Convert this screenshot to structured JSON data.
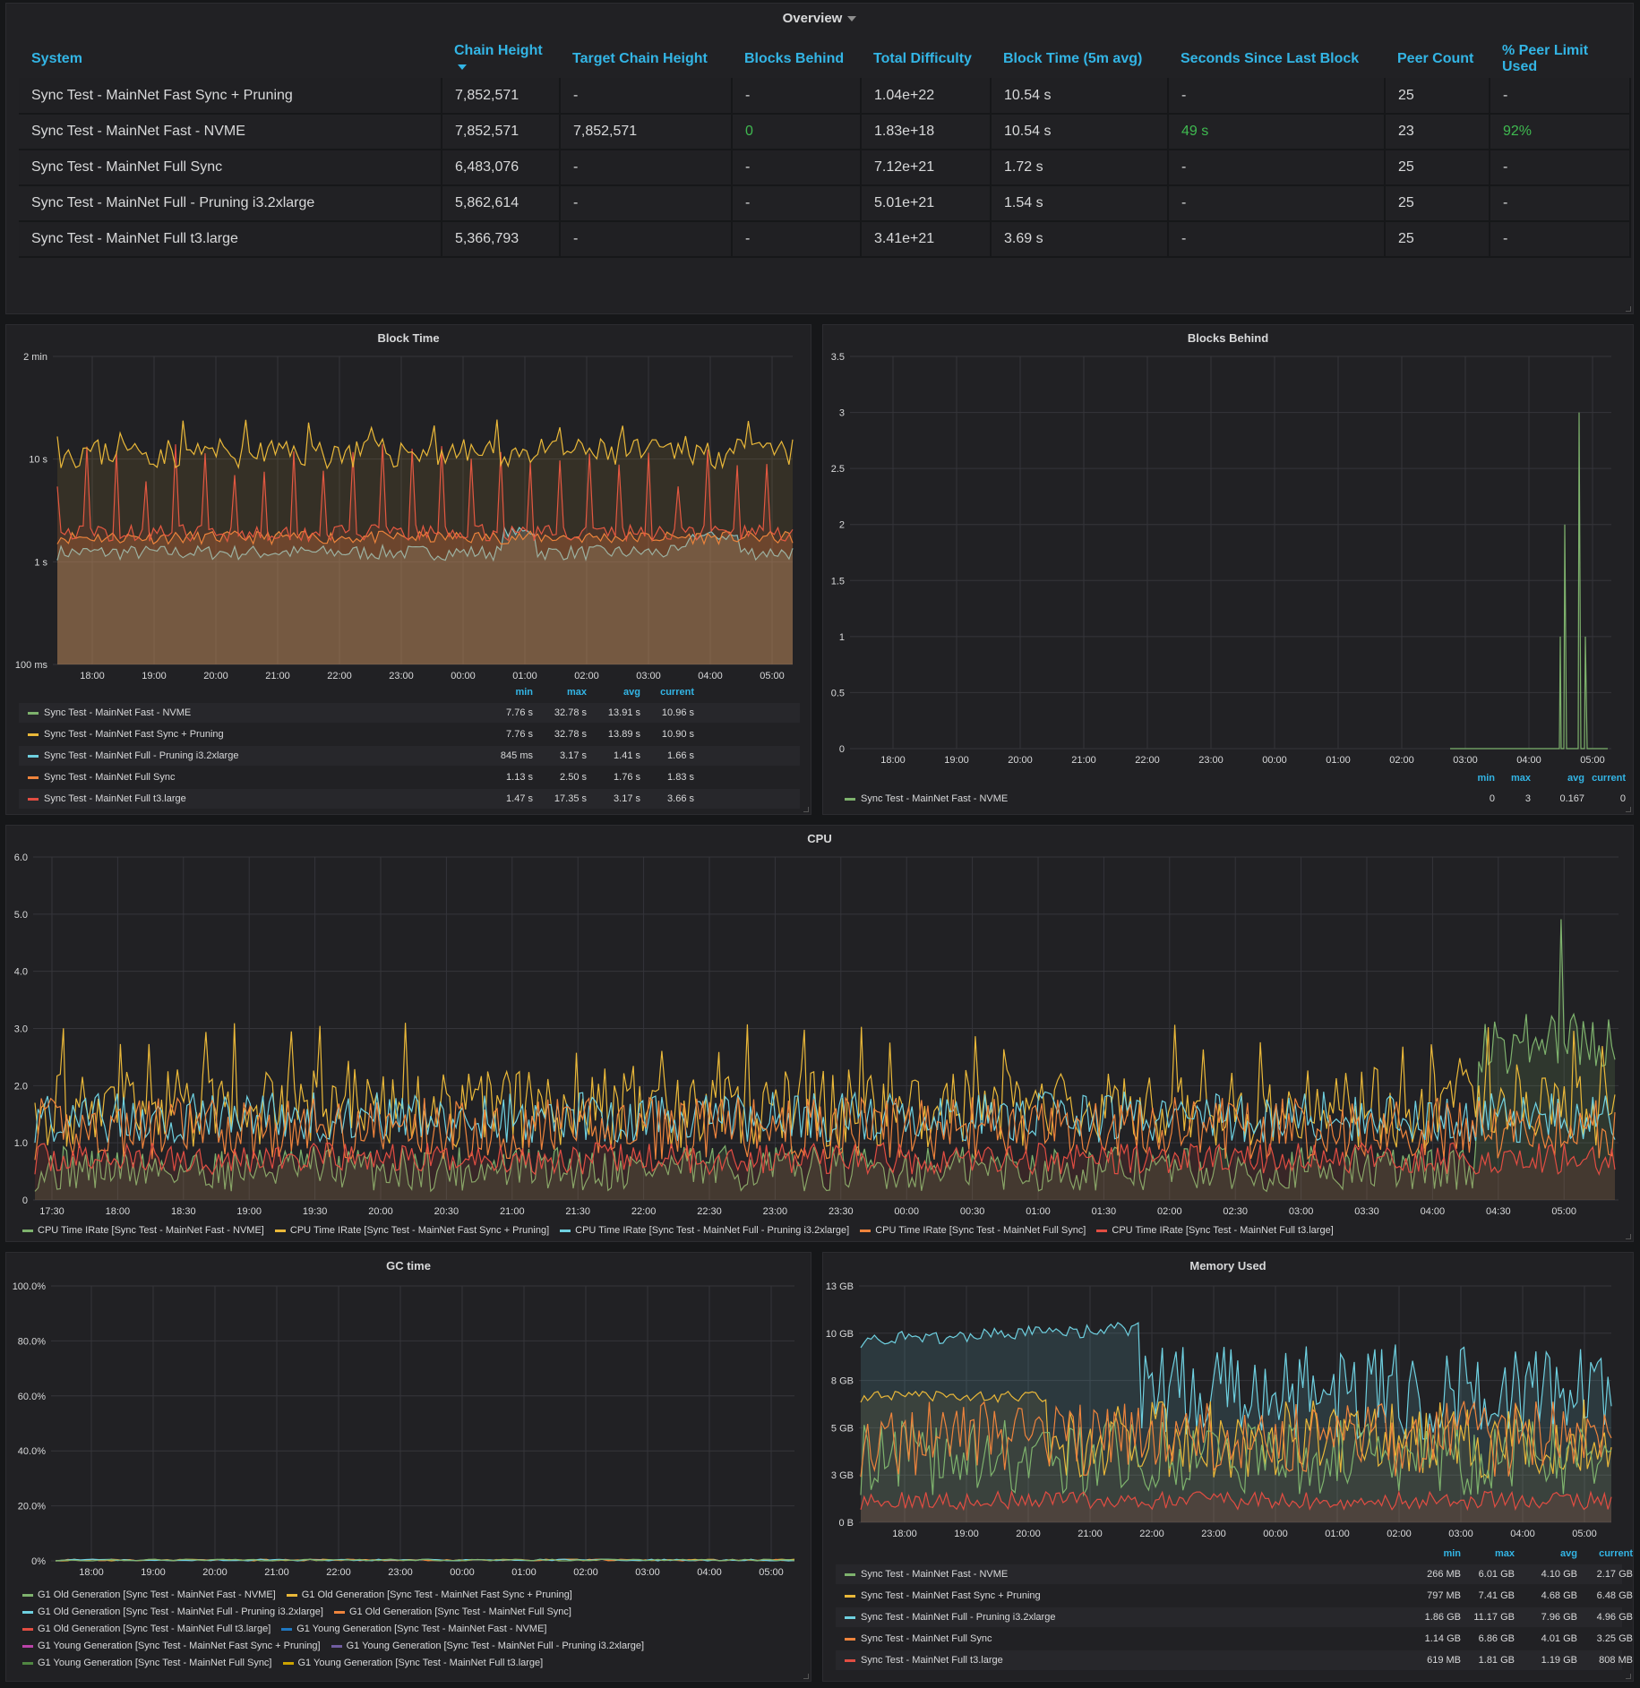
{
  "colors": {
    "green": "#7eb26d",
    "yellow": "#eab839",
    "cyan": "#6ed0e0",
    "orange": "#ef843c",
    "red": "#e24d42",
    "blue": "#1f78c1",
    "pink": "#ba43a9",
    "purple": "#705da0",
    "darkgreen": "#508642",
    "darkyellow": "#cca300"
  },
  "overview": {
    "title": "Overview",
    "columns": [
      "System",
      "Chain Height",
      "Target Chain Height",
      "Blocks Behind",
      "Total Difficulty",
      "Block Time (5m avg)",
      "Seconds Since Last Block",
      "Peer Count",
      "% Peer Limit Used"
    ],
    "rows": [
      [
        "Sync Test - MainNet Fast Sync + Pruning",
        "7,852,571",
        "-",
        "-",
        "1.04e+22",
        "10.54 s",
        "-",
        "25",
        "-"
      ],
      [
        "Sync Test - MainNet Fast - NVME",
        "7,852,571",
        "7,852,571",
        "0",
        "1.83e+18",
        "10.54 s",
        "49 s",
        "23",
        "92%"
      ],
      [
        "Sync Test - MainNet Full Sync",
        "6,483,076",
        "-",
        "-",
        "7.12e+21",
        "1.72 s",
        "-",
        "25",
        "-"
      ],
      [
        "Sync Test - MainNet Full - Pruning i3.2xlarge",
        "5,862,614",
        "-",
        "-",
        "5.01e+21",
        "1.54 s",
        "-",
        "25",
        "-"
      ],
      [
        "Sync Test - MainNet Full t3.large",
        "5,366,793",
        "-",
        "-",
        "3.41e+21",
        "3.69 s",
        "-",
        "25",
        "-"
      ]
    ]
  },
  "block_time": {
    "title": "Block Time",
    "y_ticks": [
      "2 min",
      "10 s",
      "1 s",
      "100 ms"
    ],
    "x_ticks": [
      "18:00",
      "19:00",
      "20:00",
      "21:00",
      "22:00",
      "23:00",
      "00:00",
      "01:00",
      "02:00",
      "03:00",
      "04:00",
      "05:00"
    ],
    "legend_headers": [
      "min",
      "max",
      "avg",
      "current"
    ],
    "legend": [
      {
        "name": "Sync Test - MainNet Fast - NVME",
        "color": "#7eb26d",
        "min": "7.76 s",
        "max": "32.78 s",
        "avg": "13.91 s",
        "current": "10.96 s"
      },
      {
        "name": "Sync Test - MainNet Fast Sync + Pruning",
        "color": "#eab839",
        "min": "7.76 s",
        "max": "32.78 s",
        "avg": "13.89 s",
        "current": "10.90 s"
      },
      {
        "name": "Sync Test - MainNet Full - Pruning i3.2xlarge",
        "color": "#6ed0e0",
        "min": "845 ms",
        "max": "3.17 s",
        "avg": "1.41 s",
        "current": "1.66 s"
      },
      {
        "name": "Sync Test - MainNet Full Sync",
        "color": "#ef843c",
        "min": "1.13 s",
        "max": "2.50 s",
        "avg": "1.76 s",
        "current": "1.83 s"
      },
      {
        "name": "Sync Test - MainNet Full t3.large",
        "color": "#e24d42",
        "min": "1.47 s",
        "max": "17.35 s",
        "avg": "3.17 s",
        "current": "3.66 s"
      }
    ]
  },
  "blocks_behind": {
    "title": "Blocks Behind",
    "y_ticks": [
      "3.5",
      "3",
      "2.5",
      "2",
      "1.5",
      "1",
      "0.5",
      "0"
    ],
    "x_ticks": [
      "18:00",
      "19:00",
      "20:00",
      "21:00",
      "22:00",
      "23:00",
      "00:00",
      "01:00",
      "02:00",
      "03:00",
      "04:00",
      "05:00"
    ],
    "legend_headers": [
      "min",
      "max",
      "avg",
      "current"
    ],
    "legend": [
      {
        "name": "Sync Test - MainNet Fast - NVME",
        "color": "#7eb26d",
        "min": "0",
        "max": "3",
        "avg": "0.167",
        "current": "0"
      }
    ]
  },
  "cpu": {
    "title": "CPU",
    "y_ticks": [
      "6.0",
      "5.0",
      "4.0",
      "3.0",
      "2.0",
      "1.0",
      "0"
    ],
    "x_ticks": [
      "17:30",
      "18:00",
      "18:30",
      "19:00",
      "19:30",
      "20:00",
      "20:30",
      "21:00",
      "21:30",
      "22:00",
      "22:30",
      "23:00",
      "23:30",
      "00:00",
      "00:30",
      "01:00",
      "01:30",
      "02:00",
      "02:30",
      "03:00",
      "03:30",
      "04:00",
      "04:30",
      "05:00"
    ],
    "legend": [
      {
        "name": "CPU Time IRate [Sync Test - MainNet Fast - NVME]",
        "color": "#7eb26d"
      },
      {
        "name": "CPU Time IRate [Sync Test - MainNet Fast Sync + Pruning]",
        "color": "#eab839"
      },
      {
        "name": "CPU Time IRate [Sync Test - MainNet Full - Pruning i3.2xlarge]",
        "color": "#6ed0e0"
      },
      {
        "name": "CPU Time IRate [Sync Test - MainNet Full Sync]",
        "color": "#ef843c"
      },
      {
        "name": "CPU Time IRate [Sync Test - MainNet Full t3.large]",
        "color": "#e24d42"
      }
    ]
  },
  "gc_time": {
    "title": "GC time",
    "y_ticks": [
      "100.0%",
      "80.0%",
      "60.0%",
      "40.0%",
      "20.0%",
      "0%"
    ],
    "x_ticks": [
      "18:00",
      "19:00",
      "20:00",
      "21:00",
      "22:00",
      "23:00",
      "00:00",
      "01:00",
      "02:00",
      "03:00",
      "04:00",
      "05:00"
    ],
    "legend": [
      {
        "name": "G1 Old Generation [Sync Test - MainNet Fast - NVME]",
        "color": "#7eb26d"
      },
      {
        "name": "G1 Old Generation [Sync Test - MainNet Fast Sync + Pruning]",
        "color": "#eab839"
      },
      {
        "name": "G1 Old Generation [Sync Test - MainNet Full - Pruning i3.2xlarge]",
        "color": "#6ed0e0"
      },
      {
        "name": "G1 Old Generation [Sync Test - MainNet Full Sync]",
        "color": "#ef843c"
      },
      {
        "name": "G1 Old Generation [Sync Test - MainNet Full t3.large]",
        "color": "#e24d42"
      },
      {
        "name": "G1 Young Generation [Sync Test - MainNet Fast - NVME]",
        "color": "#1f78c1"
      },
      {
        "name": "G1 Young Generation [Sync Test - MainNet Fast Sync + Pruning]",
        "color": "#ba43a9"
      },
      {
        "name": "G1 Young Generation [Sync Test - MainNet Full - Pruning i3.2xlarge]",
        "color": "#705da0"
      },
      {
        "name": "G1 Young Generation [Sync Test - MainNet Full Sync]",
        "color": "#508642"
      },
      {
        "name": "G1 Young Generation [Sync Test - MainNet Full t3.large]",
        "color": "#cca300"
      }
    ]
  },
  "memory": {
    "title": "Memory Used",
    "y_ticks": [
      "13 GB",
      "10 GB",
      "8 GB",
      "5 GB",
      "3 GB",
      "0 B"
    ],
    "x_ticks": [
      "18:00",
      "19:00",
      "20:00",
      "21:00",
      "22:00",
      "23:00",
      "00:00",
      "01:00",
      "02:00",
      "03:00",
      "04:00",
      "05:00"
    ],
    "legend_headers": [
      "min",
      "max",
      "avg",
      "current"
    ],
    "legend": [
      {
        "name": "Sync Test - MainNet Fast - NVME",
        "color": "#7eb26d",
        "min": "266 MB",
        "max": "6.01 GB",
        "avg": "4.10 GB",
        "current": "2.17 GB"
      },
      {
        "name": "Sync Test - MainNet Fast Sync + Pruning",
        "color": "#eab839",
        "min": "797 MB",
        "max": "7.41 GB",
        "avg": "4.68 GB",
        "current": "6.48 GB"
      },
      {
        "name": "Sync Test - MainNet Full - Pruning i3.2xlarge",
        "color": "#6ed0e0",
        "min": "1.86 GB",
        "max": "11.17 GB",
        "avg": "7.96 GB",
        "current": "4.96 GB"
      },
      {
        "name": "Sync Test - MainNet Full Sync",
        "color": "#ef843c",
        "min": "1.14 GB",
        "max": "6.86 GB",
        "avg": "4.01 GB",
        "current": "3.25 GB"
      },
      {
        "name": "Sync Test - MainNet Full t3.large",
        "color": "#e24d42",
        "min": "619 MB",
        "max": "1.81 GB",
        "avg": "1.19 GB",
        "current": "808 MB"
      }
    ]
  }
}
